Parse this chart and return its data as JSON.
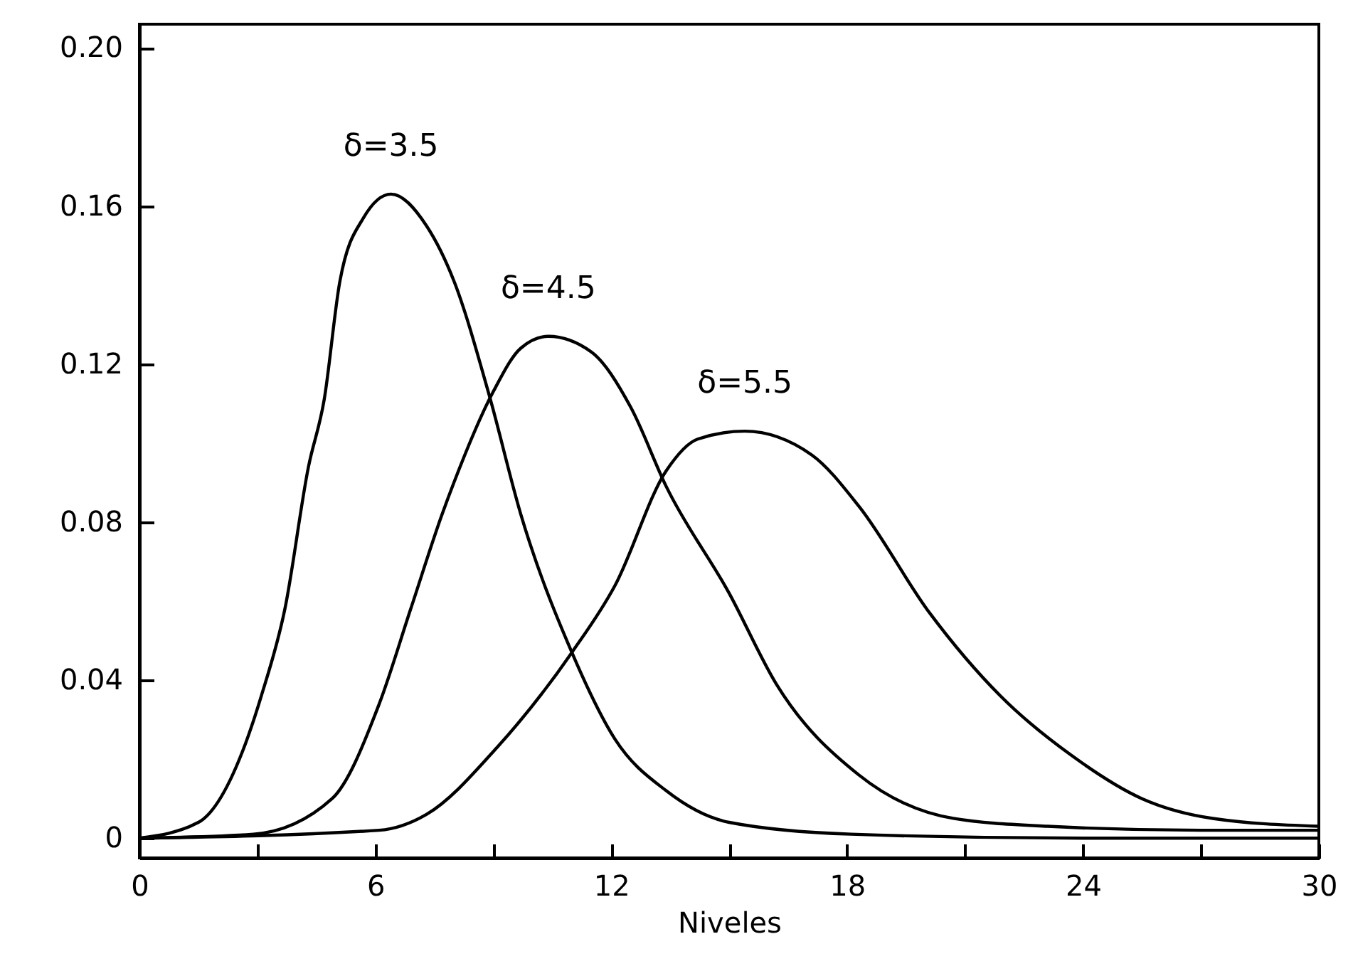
{
  "chart_data": {
    "type": "line",
    "xlabel": "Niveles",
    "xlim": [
      0,
      30
    ],
    "ylim": [
      -0.005,
      0.206
    ],
    "xticks": [
      0,
      {
        "value": 3,
        "label": null
      },
      6,
      {
        "value": 9,
        "label": null
      },
      12,
      {
        "value": 15,
        "label": null
      },
      18,
      {
        "value": 21,
        "label": null
      },
      24,
      {
        "value": 27,
        "label": null
      },
      30
    ],
    "yticks": [
      0,
      0.04,
      0.08,
      0.12,
      0.16,
      {
        "value": 0.2,
        "label": "0.20"
      }
    ],
    "grid": false,
    "marker": "none",
    "line_style": "solid",
    "series": [
      {
        "name": "δ=3.5",
        "color": "#000000",
        "x": [
          0,
          1.5,
          2.7,
          3.1,
          3.7,
          4.3,
          4.7,
          5.1,
          5.7,
          6.4,
          7.3,
          8.0,
          8.9,
          9.7,
          11.0,
          12.1,
          13.4,
          15.0,
          18.1,
          24,
          30
        ],
        "values": [
          0,
          0.004,
          0.024,
          0.036,
          0.058,
          0.094,
          0.111,
          0.141,
          0.157,
          0.163,
          0.155,
          0.141,
          0.112,
          0.082,
          0.047,
          0.025,
          0.012,
          0.004,
          0.001,
          0,
          0
        ]
      },
      {
        "name": "δ=4.5",
        "color": "#000000",
        "x": [
          0,
          2.9,
          4.9,
          6.1,
          6.9,
          7.7,
          8.0,
          9.0,
          9.7,
          10.4,
          11.5,
          12.5,
          13.4,
          15.0,
          16.2,
          18.3,
          20.7,
          23.1,
          27,
          30
        ],
        "values": [
          0,
          0.001,
          0.01,
          0.034,
          0.058,
          0.082,
          0.09,
          0.113,
          0.124,
          0.127,
          0.123,
          0.109,
          0.089,
          0.062,
          0.039,
          0.016,
          0.005,
          0.003,
          0.002,
          0.002
        ]
      },
      {
        "name": "δ=5.5",
        "color": "#000000",
        "x": [
          0,
          6.1,
          7.3,
          9.1,
          11.0,
          12.1,
          13.4,
          14.2,
          15.4,
          17.1,
          18.3,
          20.1,
          21.9,
          23.7,
          25.5,
          27.3,
          30
        ],
        "values": [
          0,
          0.002,
          0.006,
          0.023,
          0.047,
          0.064,
          0.093,
          0.101,
          0.103,
          0.097,
          0.084,
          0.057,
          0.036,
          0.021,
          0.01,
          0.005,
          0.003
        ]
      }
    ]
  }
}
